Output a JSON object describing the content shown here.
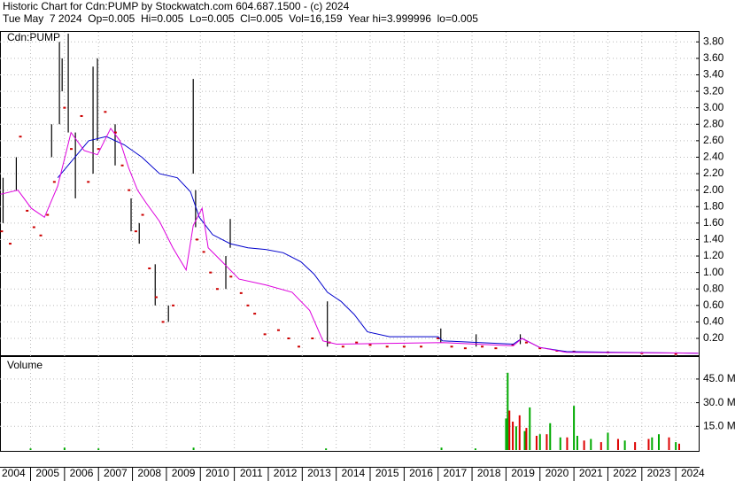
{
  "header": {
    "line1": "Historic Chart for Cdn:PUMP by Stockwatch.com 604.687.1500 - (c) 2024",
    "line2": "Tue May  7 2024  Op=0.005  Hi=0.005  Lo=0.005  Cl=0.005  Vol=16,159  Year hi=3.999996  lo=0.005"
  },
  "chart_data": [
    {
      "type": "line",
      "title": "Cdn:PUMP",
      "xlim": [
        2004.1,
        2024.7
      ],
      "ylim": [
        0,
        3.9
      ],
      "yticks": [
        {
          "value": 0.2,
          "label": "0.20"
        },
        {
          "value": 0.4,
          "label": "0.40"
        },
        {
          "value": 0.6,
          "label": "0.60"
        },
        {
          "value": 0.8,
          "label": "0.80"
        },
        {
          "value": 1.0,
          "label": "1.00"
        },
        {
          "value": 1.2,
          "label": "1.20"
        },
        {
          "value": 1.4,
          "label": "1.40"
        },
        {
          "value": 1.6,
          "label": "1.60"
        },
        {
          "value": 1.8,
          "label": "1.80"
        },
        {
          "value": 2.0,
          "label": "2.00"
        },
        {
          "value": 2.2,
          "label": "2.20"
        },
        {
          "value": 2.4,
          "label": "2.40"
        },
        {
          "value": 2.6,
          "label": "2.60"
        },
        {
          "value": 2.8,
          "label": "2.80"
        },
        {
          "value": 3.0,
          "label": "3.00"
        },
        {
          "value": 3.2,
          "label": "3.20"
        },
        {
          "value": 3.4,
          "label": "3.40"
        },
        {
          "value": 3.6,
          "label": "3.60"
        },
        {
          "value": 3.8,
          "label": "3.80"
        }
      ],
      "grid": true,
      "series": [
        {
          "color": "#0000cc",
          "x": [
            2005.8,
            2006.71,
            2007.23,
            2007.76,
            2008.28,
            2008.8,
            2009.32,
            2009.71,
            2009.97,
            2010.36,
            2010.88,
            2011.4,
            2011.92,
            2012.44,
            2012.96,
            2013.35,
            2013.74,
            2014.14,
            2014.53,
            2014.92,
            2015.57,
            2017.0,
            2017.13,
            2019.21,
            2019.47,
            2019.99,
            2020.78,
            2022.34,
            2024.66
          ],
          "values": [
            2.15,
            2.6,
            2.65,
            2.55,
            2.4,
            2.2,
            2.15,
            1.98,
            1.67,
            1.46,
            1.35,
            1.3,
            1.28,
            1.24,
            1.13,
            0.98,
            0.76,
            0.65,
            0.49,
            0.28,
            0.22,
            0.22,
            0.17,
            0.13,
            0.2,
            0.09,
            0.04,
            0.03,
            0.02
          ]
        },
        {
          "color": "#dd00dd",
          "x": [
            2004.11,
            2004.63,
            2005.02,
            2005.41,
            2005.8,
            2006.19,
            2006.58,
            2006.97,
            2007.36,
            2007.63,
            2007.89,
            2008.15,
            2008.41,
            2008.8,
            2009.19,
            2009.58,
            2009.79,
            2010.05,
            2010.23,
            2010.62,
            2011.14,
            2011.92,
            2012.7,
            2013.22,
            2013.61,
            2014.01,
            2017.13,
            2019.21,
            2019.47,
            2019.99,
            2020.78,
            2024.66
          ],
          "values": [
            1.95,
            2.0,
            1.78,
            1.67,
            2.05,
            2.7,
            2.48,
            2.43,
            2.75,
            2.6,
            2.27,
            2.0,
            1.84,
            1.62,
            1.3,
            1.03,
            1.57,
            1.78,
            1.3,
            1.14,
            0.92,
            0.85,
            0.76,
            0.54,
            0.17,
            0.13,
            0.15,
            0.11,
            0.2,
            0.09,
            0.03,
            0.02
          ]
        }
      ],
      "price_bars": {
        "color": "#000000",
        "x": [
          2004.19,
          2004.58,
          2005.62,
          2005.85,
          2005.93,
          2006.11,
          2006.32,
          2006.84,
          2006.97,
          2007.49,
          2007.96,
          2008.2,
          2008.67,
          2009.06,
          2009.79,
          2009.86,
          2010.75,
          2010.88,
          2013.74,
          2017.08,
          2018.12,
          2019.42
        ],
        "high": [
          2.15,
          2.4,
          2.8,
          3.8,
          3.6,
          3.9,
          2.7,
          3.5,
          3.6,
          2.8,
          1.9,
          1.6,
          1.1,
          0.6,
          3.35,
          2.0,
          1.2,
          1.65,
          0.65,
          0.32,
          0.25,
          0.25
        ],
        "low": [
          1.6,
          2.0,
          2.4,
          2.8,
          3.2,
          2.7,
          1.9,
          2.2,
          2.6,
          2.3,
          1.5,
          1.35,
          0.6,
          0.4,
          2.2,
          1.55,
          0.8,
          1.3,
          0.1,
          0.15,
          0.1,
          0.13
        ]
      },
      "closes": {
        "color": "#cc0000",
        "x": [
          2004.15,
          2004.4,
          2004.7,
          2004.9,
          2005.1,
          2005.3,
          2005.5,
          2005.7,
          2006.0,
          2006.2,
          2006.5,
          2006.7,
          2007.0,
          2007.2,
          2007.5,
          2007.7,
          2007.9,
          2008.1,
          2008.3,
          2008.5,
          2008.7,
          2008.9,
          2009.2,
          2009.9,
          2010.1,
          2010.3,
          2010.5,
          2010.9,
          2011.2,
          2011.4,
          2011.6,
          2011.9,
          2012.3,
          2012.6,
          2012.9,
          2013.3,
          2013.8,
          2014.2,
          2014.6,
          2015.0,
          2015.5,
          2016.0,
          2016.5,
          2017.0,
          2017.4,
          2017.8,
          2018.3,
          2018.7,
          2019.2,
          2019.6,
          2020.0,
          2020.5,
          2021.0,
          2022.0,
          2023.0,
          2024.0
        ],
        "values": [
          1.5,
          1.35,
          2.65,
          1.75,
          1.55,
          1.45,
          1.7,
          2.1,
          3.0,
          2.5,
          2.9,
          2.1,
          2.5,
          2.95,
          2.7,
          2.3,
          2.0,
          1.5,
          1.7,
          1.05,
          0.7,
          0.4,
          0.6,
          1.4,
          1.25,
          1.0,
          0.8,
          0.95,
          0.75,
          0.6,
          0.5,
          0.25,
          0.3,
          0.2,
          0.1,
          0.2,
          0.15,
          0.1,
          0.15,
          0.12,
          0.1,
          0.1,
          0.1,
          0.2,
          0.1,
          0.08,
          0.1,
          0.08,
          0.12,
          0.15,
          0.08,
          0.05,
          0.04,
          0.03,
          0.02,
          0.01
        ]
      }
    },
    {
      "type": "bar",
      "title": "Volume",
      "xlim": [
        2004.1,
        2024.7
      ],
      "ylim": [
        0,
        59000000
      ],
      "yticks": [
        {
          "value": 15000000,
          "label": "15.0 M"
        },
        {
          "value": 30000000,
          "label": "30.0 M"
        },
        {
          "value": 45000000,
          "label": "45.0 M"
        }
      ],
      "xticks": [
        2004,
        2005,
        2006,
        2007,
        2008,
        2009,
        2010,
        2011,
        2012,
        2013,
        2014,
        2015,
        2016,
        2017,
        2018,
        2019,
        2020,
        2021,
        2022,
        2023,
        2024
      ],
      "grid": true,
      "series": [
        {
          "color": "#00aa00",
          "x": [
            2005.0,
            2006.0,
            2007.0,
            2009.8,
            2013.7,
            2017.1,
            2018.1,
            2019.0,
            2019.05,
            2019.3,
            2019.55,
            2019.7,
            2020.0,
            2020.3,
            2020.6,
            2021.0,
            2021.1,
            2021.5,
            2022.0,
            2022.5,
            2023.3,
            2023.5,
            2024.0
          ],
          "values": [
            1000000,
            1500000,
            1000000,
            1500000,
            1000000,
            1500000,
            1000000,
            20000000,
            49000000,
            15000000,
            12000000,
            27000000,
            10000000,
            17000000,
            8000000,
            28000000,
            9000000,
            7000000,
            11000000,
            6000000,
            8000000,
            10000000,
            5000000
          ]
        },
        {
          "color": "#dd0000",
          "x": [
            2019.1,
            2019.2,
            2019.4,
            2019.6,
            2019.9,
            2020.2,
            2020.8,
            2021.3,
            2021.8,
            2022.3,
            2022.8,
            2023.2,
            2023.8,
            2024.1
          ],
          "values": [
            25000000,
            18000000,
            22000000,
            14000000,
            9000000,
            10000000,
            8000000,
            6000000,
            5000000,
            7000000,
            5000000,
            7000000,
            8000000,
            4000000
          ]
        }
      ]
    }
  ]
}
